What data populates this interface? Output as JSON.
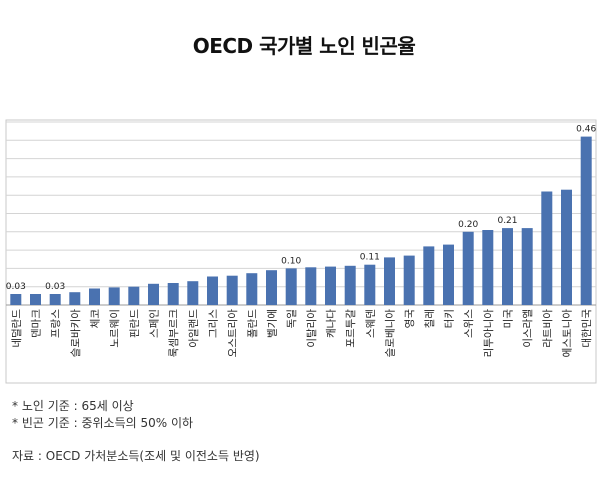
{
  "title": "OECD 국가별 노인 빈곤율",
  "notes": {
    "line1": "* 노인 기준 : 65세 이상",
    "line2": "* 빈곤 기준 : 중위소득의 50% 이하",
    "source": "자료 : OECD 가처분소득(조세 및 이전소득 반영)"
  },
  "chart_data": {
    "type": "bar",
    "title": "OECD 국가별 노인 빈곤율",
    "xlabel": "",
    "ylabel": "",
    "ylim": [
      0,
      0.5
    ],
    "grid": true,
    "bar_color": "#4a72b0",
    "categories": [
      "네덜란드",
      "덴마크",
      "프랑스",
      "슬로바키아",
      "체코",
      "노르웨이",
      "핀란드",
      "스페인",
      "룩셈부르크",
      "아일랜드",
      "그리스",
      "오스트리아",
      "폴란드",
      "벨기에",
      "독일",
      "이탈리아",
      "캐나다",
      "포르투갈",
      "스웨덴",
      "슬로베니아",
      "영국",
      "칠레",
      "터키",
      "스위스",
      "리투아니아",
      "미국",
      "이스라엘",
      "라트비아",
      "에스토니아",
      "대한민국"
    ],
    "values": [
      0.03,
      0.03,
      0.03,
      0.035,
      0.045,
      0.048,
      0.05,
      0.058,
      0.06,
      0.065,
      0.078,
      0.08,
      0.087,
      0.095,
      0.1,
      0.103,
      0.105,
      0.107,
      0.11,
      0.13,
      0.135,
      0.16,
      0.165,
      0.2,
      0.205,
      0.21,
      0.21,
      0.31,
      0.315,
      0.46
    ],
    "value_labels": [
      {
        "index": 0,
        "text": "0.03"
      },
      {
        "index": 2,
        "text": "0.03"
      },
      {
        "index": 14,
        "text": "0.10"
      },
      {
        "index": 18,
        "text": "0.11"
      },
      {
        "index": 23,
        "text": "0.20"
      },
      {
        "index": 25,
        "text": "0.21"
      },
      {
        "index": 29,
        "text": "0.46"
      }
    ]
  }
}
